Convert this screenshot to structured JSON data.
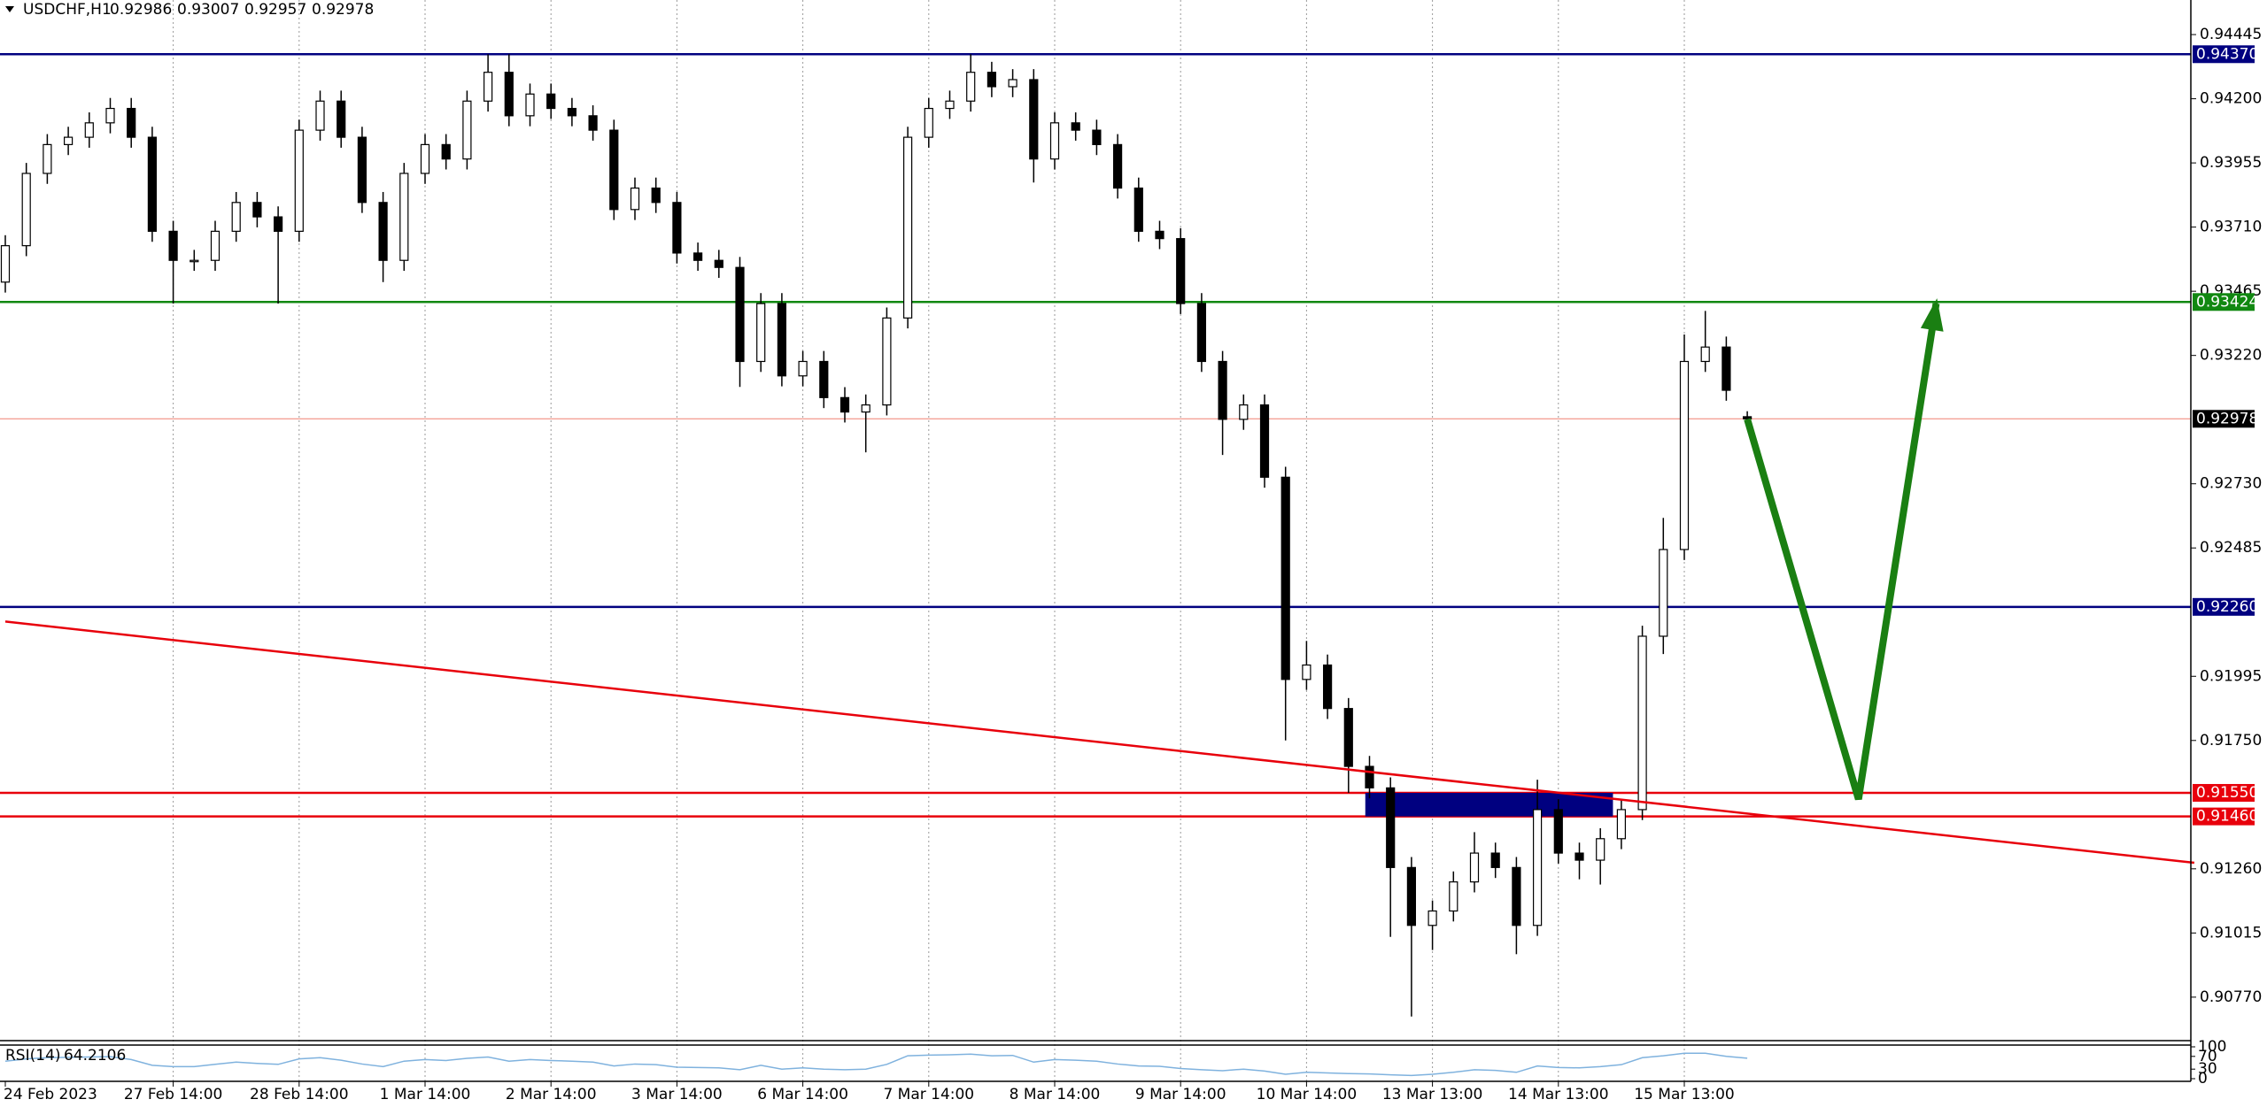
{
  "chart_data": {
    "type": "candlestick",
    "title": "USDCHF,H1",
    "categories": [
      "24 Feb 2023",
      null,
      null,
      null,
      null,
      null,
      null,
      null,
      "27 Feb 14:00",
      null,
      null,
      null,
      null,
      null,
      "28 Feb 14:00",
      null,
      null,
      null,
      null,
      null,
      "1 Mar 14:00",
      null,
      null,
      null,
      null,
      null,
      "2 Mar 14:00",
      null,
      null,
      null,
      null,
      null,
      "3 Mar 14:00",
      null,
      null,
      null,
      null,
      null,
      "6 Mar 14:00",
      null,
      null,
      null,
      null,
      null,
      "7 Mar 14:00",
      null,
      null,
      null,
      null,
      null,
      "8 Mar 14:00",
      null,
      null,
      null,
      null,
      null,
      "9 Mar 14:00",
      null,
      null,
      null,
      null,
      null,
      "10 Mar 14:00",
      null,
      null,
      null,
      null,
      null,
      "13 Mar 13:00",
      null,
      null,
      null,
      null,
      null,
      "14 Mar 13:00",
      null,
      null,
      null,
      null,
      null,
      "15 Mar 13:00",
      null,
      null,
      null
    ],
    "open": [
      0.935,
      0.93639,
      0.93915,
      0.94025,
      0.94053,
      0.94108,
      0.94163,
      0.94053,
      0.93694,
      0.93583,
      0.93583,
      0.93694,
      0.93804,
      0.93749,
      0.93694,
      0.9408,
      0.94191,
      0.94053,
      0.93804,
      0.93583,
      0.93915,
      0.94025,
      0.9397,
      0.94191,
      0.94301,
      0.94135,
      0.94218,
      0.94163,
      0.94135,
      0.9408,
      0.93777,
      0.93859,
      0.93804,
      0.93611,
      0.93583,
      0.93556,
      0.93197,
      0.93418,
      0.93142,
      0.93197,
      0.93059,
      0.93004,
      0.93031,
      0.93363,
      0.94053,
      0.94163,
      0.94191,
      0.94301,
      0.94246,
      0.94273,
      0.9397,
      0.94108,
      0.9408,
      0.94025,
      0.93859,
      0.93694,
      0.93666,
      0.93418,
      0.93197,
      0.92976,
      0.93031,
      0.92755,
      0.91983,
      0.92038,
      0.91872,
      0.91651,
      0.91569,
      0.91265,
      0.91044,
      0.91099,
      0.9121,
      0.9132,
      0.91265,
      0.91044,
      0.91486,
      0.9132,
      0.91293,
      0.91375,
      0.91486,
      0.92148,
      0.92479,
      0.93197,
      0.93252,
      0.92986
    ],
    "high": [
      0.93679,
      0.93955,
      0.94065,
      0.94093,
      0.94148,
      0.94203,
      0.94203,
      0.94093,
      0.93734,
      0.93623,
      0.93734,
      0.93844,
      0.93844,
      0.93789,
      0.9412,
      0.94231,
      0.94231,
      0.94093,
      0.93844,
      0.93955,
      0.94065,
      0.94065,
      0.94231,
      0.9437,
      0.9437,
      0.94258,
      0.94258,
      0.94203,
      0.94175,
      0.9412,
      0.93899,
      0.93899,
      0.93844,
      0.93651,
      0.93623,
      0.93596,
      0.93458,
      0.93458,
      0.93237,
      0.93237,
      0.93099,
      0.93071,
      0.93403,
      0.94093,
      0.94203,
      0.94231,
      0.9437,
      0.94341,
      0.94313,
      0.94313,
      0.94148,
      0.94148,
      0.9412,
      0.94065,
      0.93899,
      0.93734,
      0.93706,
      0.93458,
      0.93237,
      0.93071,
      0.93071,
      0.92795,
      0.9213,
      0.92078,
      0.91912,
      0.91691,
      0.91609,
      0.91305,
      0.91139,
      0.9125,
      0.914,
      0.9136,
      0.91305,
      0.916,
      0.91526,
      0.9136,
      0.91415,
      0.91526,
      0.92188,
      0.926,
      0.933,
      0.9339,
      0.93292,
      0.93007
    ],
    "low": [
      0.9346,
      0.93599,
      0.93875,
      0.93985,
      0.94013,
      0.94068,
      0.94013,
      0.93654,
      0.93418,
      0.93543,
      0.93543,
      0.93654,
      0.93709,
      0.93418,
      0.93654,
      0.9404,
      0.94013,
      0.93764,
      0.935,
      0.93543,
      0.93875,
      0.9393,
      0.9393,
      0.94151,
      0.94095,
      0.94095,
      0.94123,
      0.94095,
      0.9404,
      0.93737,
      0.93737,
      0.93764,
      0.93571,
      0.93543,
      0.93516,
      0.931,
      0.93157,
      0.93102,
      0.93102,
      0.93019,
      0.92964,
      0.9285,
      0.92991,
      0.93323,
      0.94013,
      0.94123,
      0.94151,
      0.94206,
      0.94206,
      0.9388,
      0.9393,
      0.9404,
      0.93985,
      0.93819,
      0.93654,
      0.93626,
      0.93378,
      0.93157,
      0.9284,
      0.92936,
      0.92715,
      0.9175,
      0.91943,
      0.91832,
      0.9155,
      0.91529,
      0.91,
      0.90696,
      0.9095,
      0.91059,
      0.9117,
      0.91225,
      0.90934,
      0.91004,
      0.9128,
      0.9122,
      0.912,
      0.91335,
      0.91446,
      0.9208,
      0.92439,
      0.93157,
      0.93047,
      0.92957
    ],
    "close": [
      0.93639,
      0.93915,
      0.94025,
      0.94053,
      0.94108,
      0.94163,
      0.94053,
      0.93694,
      0.93583,
      0.93583,
      0.93694,
      0.93804,
      0.93749,
      0.93694,
      0.9408,
      0.94191,
      0.94053,
      0.93804,
      0.93583,
      0.93915,
      0.94025,
      0.9397,
      0.94191,
      0.94301,
      0.94135,
      0.94218,
      0.94163,
      0.94135,
      0.9408,
      0.93777,
      0.93859,
      0.93804,
      0.93611,
      0.93583,
      0.93556,
      0.93197,
      0.93418,
      0.93142,
      0.93197,
      0.93059,
      0.93004,
      0.93031,
      0.93363,
      0.94053,
      0.94163,
      0.94191,
      0.94301,
      0.94246,
      0.94273,
      0.9397,
      0.94108,
      0.9408,
      0.94025,
      0.93859,
      0.93694,
      0.93666,
      0.93418,
      0.93197,
      0.92976,
      0.93031,
      0.92755,
      0.91983,
      0.92038,
      0.91872,
      0.91651,
      0.91569,
      0.91265,
      0.91044,
      0.91099,
      0.9121,
      0.9132,
      0.91265,
      0.91044,
      0.91486,
      0.9132,
      0.91293,
      0.91375,
      0.91486,
      0.92148,
      0.92479,
      0.93197,
      0.93252,
      0.93087,
      0.92978
    ],
    "up_color": "#ffffff",
    "down_color": "#000000",
    "ylim": [
      0.90604,
      0.94577
    ],
    "yticks": [
      0.94445,
      {
        "value": 0.942,
        "label": "0.94200"
      },
      0.93955,
      {
        "value": 0.9371,
        "label": "0.93710"
      },
      0.93465,
      {
        "value": 0.9322,
        "label": "0.93220"
      },
      {
        "value": 0.9273,
        "label": "0.92730"
      },
      0.92485,
      0.91995,
      {
        "value": 0.9175,
        "label": "0.91750"
      },
      {
        "value": 0.9126,
        "label": "0.91260"
      },
      0.91015,
      {
        "value": 0.9077,
        "label": "0.90770"
      }
    ],
    "grid": true,
    "current_price_color": "#f08070",
    "levels": [
      {
        "value": 0.9437,
        "label": "0.94370",
        "color": "#000080"
      },
      {
        "value": 0.93424,
        "color": "#118811"
      },
      {
        "value": 0.9226,
        "label": "0.92260",
        "color": "#000080"
      },
      {
        "value": 0.9155,
        "label": "0.91550",
        "color": "#e8000b"
      },
      {
        "value": 0.9146,
        "label": "0.91460",
        "color": "#e8000b"
      }
    ],
    "trend_line": {
      "x": [
        0,
        104.3
      ],
      "y": [
        0.92204,
        0.91283
      ],
      "color": "#e8000b"
    },
    "zone": {
      "x": [
        64.8,
        76.6
      ],
      "y": [
        0.9146,
        0.9155
      ],
      "color": "#000080"
    },
    "arrow": {
      "x": [
        83.0,
        88.3,
        92.0
      ],
      "y": [
        0.92977,
        0.91526,
        0.93418
      ],
      "color": "#1a7f12"
    },
    "rsi": {
      "name": "RSI(14)",
      "color": "#7fb2de",
      "ylim": [
        0,
        100
      ],
      "yticks": [
        100,
        70,
        30,
        0
      ],
      "values": [
        55,
        62,
        66,
        67,
        68,
        69,
        60,
        42,
        38,
        38,
        45,
        52,
        48,
        45,
        62,
        66,
        58,
        46,
        38,
        55,
        60,
        57,
        64,
        68,
        55,
        60,
        57,
        55,
        52,
        40,
        46,
        44,
        36,
        35,
        34,
        28,
        42,
        30,
        34,
        30,
        28,
        30,
        45,
        72,
        74,
        75,
        77,
        72,
        73,
        52,
        60,
        58,
        55,
        46,
        40,
        39,
        32,
        28,
        25,
        30,
        24,
        14,
        20,
        18,
        16,
        15,
        12,
        10,
        14,
        20,
        28,
        26,
        20,
        40,
        35,
        34,
        38,
        44,
        66,
        72,
        80,
        80,
        70,
        64.2106
      ]
    }
  }
}
